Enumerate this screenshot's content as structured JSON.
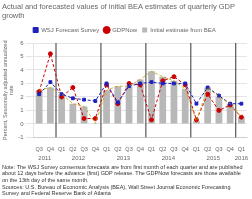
{
  "chart_data": {
    "type": "bar",
    "title": "Actual and forecasted values of initial BEA estimates of quarterly GDP growth",
    "ylabel": "Percent, Seasonally adjusted annualized rate",
    "categories": [
      "Q3",
      "Q4",
      "Q1",
      "Q2",
      "Q3",
      "Q4",
      "Q1",
      "Q2",
      "Q3",
      "Q4",
      "Q1",
      "Q2",
      "Q3",
      "Q4",
      "Q1",
      "Q2",
      "Q3",
      "Q4",
      "Q1"
    ],
    "groups": [
      "2011",
      "2011",
      "2012",
      "2012",
      "2012",
      "2012",
      "2013",
      "2013",
      "2013",
      "2013",
      "2014",
      "2014",
      "2014",
      "2014",
      "2015",
      "2015",
      "2015",
      "2015",
      "2016"
    ],
    "series": [
      {
        "name": "Initial estimate from BEA",
        "type": "bar",
        "color": "#b8b8b8",
        "values": [
          2.5,
          2.7,
          2.2,
          1.5,
          1.3,
          0.05,
          2.5,
          2.8,
          2.8,
          3.3,
          3.9,
          3.5,
          3.2,
          2.6,
          0.2,
          2.7,
          2.0,
          1.5,
          0.5
        ]
      },
      {
        "type": "line",
        "color": "#c8a000",
        "line_style": "dashed",
        "marker": "none",
        "values": [
          2.5,
          2.7,
          2.2,
          1.5,
          1.3,
          0.05,
          2.5,
          2.8,
          2.8,
          3.3,
          3.9,
          3.5,
          3.2,
          2.6,
          0.2,
          2.7,
          2.0,
          1.5,
          0.5
        ]
      },
      {
        "name": "WSJ Forecast Survey",
        "type": "line",
        "color": "#1f1fbf",
        "line_style": "dashed",
        "marker": "square",
        "values": [
          2.2,
          3.1,
          2.2,
          1.9,
          1.8,
          1.7,
          3.0,
          1.6,
          2.8,
          3.0,
          3.1,
          3.0,
          3.0,
          3.0,
          1.5,
          2.7,
          2.1,
          1.5,
          1.5
        ]
      },
      {
        "name": "GDPNow",
        "type": "line",
        "color": "#cc0000",
        "line_style": "dashed",
        "marker": "circle",
        "values": [
          2.4,
          5.2,
          2.0,
          2.7,
          0.4,
          0.4,
          2.9,
          1.5,
          3.0,
          2.9,
          0.3,
          3.2,
          3.5,
          2.9,
          0.3,
          2.2,
          1.0,
          1.4,
          0.5
        ]
      }
    ],
    "ylim": [
      -1,
      6
    ],
    "yticks": [
      -1,
      0,
      1,
      2,
      3,
      4,
      5,
      6
    ],
    "grid": true,
    "legend": "top",
    "annotations": [
      {
        "text": [
          "Note: The WSJ Survey consensus forecasts are from first month of each quarter and are",
          "published about 12 days before the advance (first) GDP release.  The GDPNow forecasts are",
          "those available on the 13th day of the same month."
        ]
      },
      {
        "text": [
          "Sources: U.S. Bureau of Economic Analysis (BEA), Wall Street Journal Economic Forecasting",
          "Survey and Federal Reserve Bank of Atlanta"
        ]
      }
    ]
  }
}
